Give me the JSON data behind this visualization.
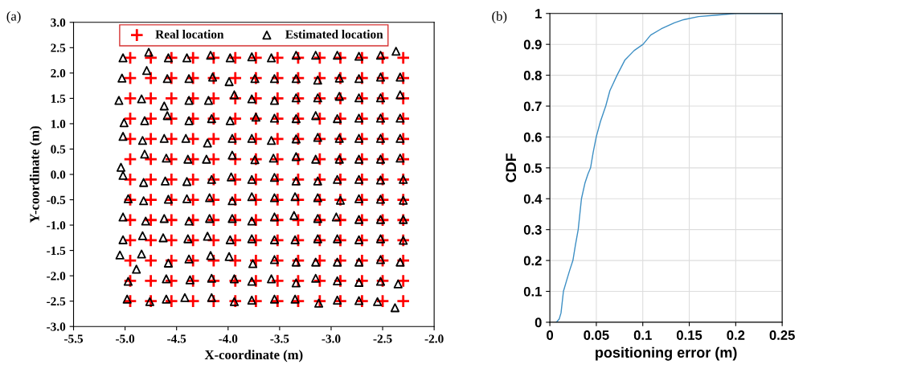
{
  "chart_data": [
    {
      "type": "scatter",
      "xlabel": "X-coordinate (m)",
      "ylabel": "Y-coordinate (m)",
      "annotations": [
        "(a)"
      ],
      "xlim": [
        -5.5,
        -2.0
      ],
      "ylim": [
        -3.0,
        3.0
      ],
      "xticks": [
        {
          "value": -5.5,
          "label": "-5.5"
        },
        {
          "value": -5.0,
          "label": "-5.0"
        },
        {
          "value": -4.5,
          "label": "-4.5"
        },
        {
          "value": -4.0,
          "label": "-4.0"
        },
        {
          "value": -3.5,
          "label": "-3.5"
        },
        {
          "value": -3.0,
          "label": "-3.0"
        },
        {
          "value": -2.5,
          "label": "-2.5"
        },
        {
          "value": -2.0,
          "label": "-2.0"
        }
      ],
      "yticks": [
        {
          "value": -3.0,
          "label": "-3.0"
        },
        {
          "value": -2.5,
          "label": "-2.5"
        },
        {
          "value": -2.0,
          "label": "-2.0"
        },
        {
          "value": -1.5,
          "label": "-1.5"
        },
        {
          "value": -1.0,
          "label": "-1.0"
        },
        {
          "value": -0.5,
          "label": "-0.5"
        },
        {
          "value": 0.0,
          "label": "0.0"
        },
        {
          "value": 0.5,
          "label": "0.5"
        },
        {
          "value": 1.0,
          "label": "1.0"
        },
        {
          "value": 1.5,
          "label": "1.5"
        },
        {
          "value": 2.0,
          "label": "2.0"
        },
        {
          "value": 2.5,
          "label": "2.5"
        },
        {
          "value": 3.0,
          "label": "3.0"
        }
      ],
      "grid": false,
      "legend": "top",
      "series": [
        {
          "name": "Real location",
          "color": "#ff0000",
          "marker": "cross",
          "x": [
            -4.95,
            -4.75,
            -4.55,
            -4.34,
            -4.14,
            -3.93,
            -3.73,
            -3.52,
            -3.32,
            -3.11,
            -2.91,
            -2.7,
            -2.5,
            -2.3,
            -4.95,
            -4.75,
            -4.55,
            -4.34,
            -4.14,
            -3.93,
            -3.73,
            -3.52,
            -3.32,
            -3.11,
            -2.91,
            -2.7,
            -2.5,
            -2.3,
            -4.95,
            -4.75,
            -4.55,
            -4.34,
            -4.14,
            -3.93,
            -3.73,
            -3.52,
            -3.32,
            -3.11,
            -2.91,
            -2.7,
            -2.5,
            -2.3,
            -4.95,
            -4.75,
            -4.55,
            -4.34,
            -4.14,
            -3.93,
            -3.73,
            -3.52,
            -3.32,
            -3.11,
            -2.91,
            -2.7,
            -2.5,
            -2.3,
            -4.95,
            -4.75,
            -4.55,
            -4.34,
            -4.14,
            -3.93,
            -3.73,
            -3.52,
            -3.32,
            -3.11,
            -2.91,
            -2.7,
            -2.5,
            -2.3,
            -4.95,
            -4.75,
            -4.55,
            -4.34,
            -4.14,
            -3.93,
            -3.73,
            -3.52,
            -3.32,
            -3.11,
            -2.91,
            -2.7,
            -2.5,
            -2.3,
            -4.95,
            -4.75,
            -4.55,
            -4.34,
            -4.14,
            -3.93,
            -3.73,
            -3.52,
            -3.32,
            -3.11,
            -2.91,
            -2.7,
            -2.5,
            -2.3,
            -4.95,
            -4.75,
            -4.55,
            -4.34,
            -4.14,
            -3.93,
            -3.73,
            -3.52,
            -3.32,
            -3.11,
            -2.91,
            -2.7,
            -2.5,
            -2.3,
            -4.95,
            -4.75,
            -4.55,
            -4.34,
            -4.14,
            -3.93,
            -3.73,
            -3.52,
            -3.32,
            -3.11,
            -2.91,
            -2.7,
            -2.5,
            -2.3,
            -4.95,
            -4.75,
            -4.55,
            -4.34,
            -4.14,
            -3.93,
            -3.73,
            -3.52,
            -3.32,
            -3.11,
            -2.91,
            -2.7,
            -2.5,
            -2.3,
            -4.95,
            -4.75,
            -4.55,
            -4.34,
            -4.14,
            -3.93,
            -3.73,
            -3.52,
            -3.32,
            -3.11,
            -2.91,
            -2.7,
            -2.5,
            -2.3,
            -4.95,
            -4.75,
            -4.55,
            -4.34,
            -4.14,
            -3.93,
            -3.73,
            -3.52,
            -3.32,
            -3.11,
            -2.91,
            -2.7,
            -2.5,
            -2.3,
            -4.95,
            -4.75,
            -4.55,
            -4.34,
            -4.14,
            -3.93,
            -3.73,
            -3.52,
            -3.32,
            -3.11,
            -2.91,
            -2.7,
            -2.5,
            -2.3
          ],
          "values": [
            2.3,
            2.3,
            2.3,
            2.3,
            2.3,
            2.3,
            2.3,
            2.3,
            2.3,
            2.3,
            2.3,
            2.3,
            2.3,
            2.3,
            1.9,
            1.9,
            1.9,
            1.9,
            1.9,
            1.9,
            1.9,
            1.9,
            1.9,
            1.9,
            1.9,
            1.9,
            1.9,
            1.9,
            1.5,
            1.5,
            1.5,
            1.5,
            1.5,
            1.5,
            1.5,
            1.5,
            1.5,
            1.5,
            1.5,
            1.5,
            1.5,
            1.5,
            1.1,
            1.1,
            1.1,
            1.1,
            1.1,
            1.1,
            1.1,
            1.1,
            1.1,
            1.1,
            1.1,
            1.1,
            1.1,
            1.1,
            0.7,
            0.7,
            0.7,
            0.7,
            0.7,
            0.7,
            0.7,
            0.7,
            0.7,
            0.7,
            0.7,
            0.7,
            0.7,
            0.7,
            0.3,
            0.3,
            0.3,
            0.3,
            0.3,
            0.3,
            0.3,
            0.3,
            0.3,
            0.3,
            0.3,
            0.3,
            0.3,
            0.3,
            -0.1,
            -0.1,
            -0.1,
            -0.1,
            -0.1,
            -0.1,
            -0.1,
            -0.1,
            -0.1,
            -0.1,
            -0.1,
            -0.1,
            -0.1,
            -0.1,
            -0.5,
            -0.5,
            -0.5,
            -0.5,
            -0.5,
            -0.5,
            -0.5,
            -0.5,
            -0.5,
            -0.5,
            -0.5,
            -0.5,
            -0.5,
            -0.5,
            -0.9,
            -0.9,
            -0.9,
            -0.9,
            -0.9,
            -0.9,
            -0.9,
            -0.9,
            -0.9,
            -0.9,
            -0.9,
            -0.9,
            -0.9,
            -0.9,
            -1.3,
            -1.3,
            -1.3,
            -1.3,
            -1.3,
            -1.3,
            -1.3,
            -1.3,
            -1.3,
            -1.3,
            -1.3,
            -1.3,
            -1.3,
            -1.3,
            -1.7,
            -1.7,
            -1.7,
            -1.7,
            -1.7,
            -1.7,
            -1.7,
            -1.7,
            -1.7,
            -1.7,
            -1.7,
            -1.7,
            -1.7,
            -1.7,
            -2.1,
            -2.1,
            -2.1,
            -2.1,
            -2.1,
            -2.1,
            -2.1,
            -2.1,
            -2.1,
            -2.1,
            -2.1,
            -2.1,
            -2.1,
            -2.1,
            -2.5,
            -2.5,
            -2.5,
            -2.5,
            -2.5,
            -2.5,
            -2.5,
            -2.5,
            -2.5,
            -2.5,
            -2.5,
            -2.5,
            -2.5,
            -2.5
          ]
        },
        {
          "name": "Estimated location",
          "color": "#000000",
          "marker": "triangle",
          "x": [
            -5.02,
            -4.77,
            -4.58,
            -4.4,
            -4.17,
            -3.98,
            -3.77,
            -3.58,
            -3.34,
            -3.15,
            -2.94,
            -2.73,
            -2.52,
            -2.37,
            -5.03,
            -4.79,
            -4.59,
            -4.38,
            -4.15,
            -3.99,
            -3.74,
            -3.55,
            -3.34,
            -3.13,
            -2.92,
            -2.73,
            -2.52,
            -2.33,
            -5.06,
            -4.84,
            -4.62,
            -4.38,
            -4.19,
            -3.94,
            -3.77,
            -3.55,
            -3.34,
            -3.13,
            -2.92,
            -2.73,
            -2.52,
            -2.33,
            -5.01,
            -4.81,
            -4.59,
            -4.38,
            -4.16,
            -3.98,
            -3.73,
            -3.55,
            -3.34,
            -3.15,
            -2.94,
            -2.73,
            -2.52,
            -2.33,
            -5.02,
            -4.83,
            -4.62,
            -4.41,
            -4.2,
            -3.96,
            -3.77,
            -3.58,
            -3.34,
            -3.13,
            -2.92,
            -2.73,
            -2.52,
            -2.33,
            -5.04,
            -4.81,
            -4.6,
            -4.39,
            -4.21,
            -3.96,
            -3.74,
            -3.56,
            -3.34,
            -3.15,
            -2.92,
            -2.73,
            -2.52,
            -2.33,
            -5.02,
            -4.82,
            -4.61,
            -4.4,
            -4.16,
            -3.97,
            -3.77,
            -3.55,
            -3.34,
            -3.13,
            -2.94,
            -2.73,
            -2.52,
            -2.3,
            -4.97,
            -4.82,
            -4.58,
            -4.4,
            -4.18,
            -3.96,
            -3.77,
            -3.55,
            -3.35,
            -3.13,
            -2.91,
            -2.73,
            -2.52,
            -2.3,
            -5.02,
            -4.8,
            -4.62,
            -4.38,
            -4.18,
            -3.96,
            -3.77,
            -3.55,
            -3.36,
            -3.13,
            -2.95,
            -2.73,
            -2.52,
            -2.3,
            -5.02,
            -4.83,
            -4.63,
            -4.39,
            -4.2,
            -3.98,
            -3.77,
            -3.55,
            -3.35,
            -3.13,
            -2.94,
            -2.73,
            -2.52,
            -2.3,
            -5.05,
            -4.84,
            -4.58,
            -4.38,
            -4.17,
            -3.99,
            -3.76,
            -3.55,
            -3.34,
            -3.15,
            -2.94,
            -2.73,
            -2.52,
            -2.33,
            -4.97,
            -4.89,
            -4.6,
            -4.37,
            -4.16,
            -3.94,
            -3.77,
            -3.58,
            -3.34,
            -3.15,
            -2.94,
            -2.73,
            -2.52,
            -2.35,
            -4.98,
            -4.76,
            -4.6,
            -4.42,
            -4.16,
            -3.94,
            -3.77,
            -3.55,
            -3.35,
            -3.12,
            -2.94,
            -2.73,
            -2.55,
            -2.38
          ],
          "values": [
            2.3,
            2.41,
            2.3,
            2.3,
            2.35,
            2.3,
            2.32,
            2.3,
            2.35,
            2.35,
            2.35,
            2.33,
            2.35,
            2.43,
            1.9,
            2.05,
            1.89,
            1.89,
            1.92,
            1.83,
            1.89,
            1.89,
            1.89,
            1.86,
            1.9,
            1.89,
            1.92,
            1.92,
            1.46,
            1.49,
            1.35,
            1.46,
            1.46,
            1.57,
            1.49,
            1.46,
            1.51,
            1.51,
            1.54,
            1.51,
            1.51,
            1.57,
            1.02,
            1.06,
            1.16,
            1.06,
            1.1,
            1.06,
            1.13,
            1.11,
            1.1,
            1.16,
            1.1,
            1.11,
            1.11,
            1.11,
            0.75,
            0.67,
            0.71,
            0.71,
            0.62,
            0.71,
            0.71,
            0.67,
            0.7,
            0.73,
            0.71,
            0.71,
            0.71,
            0.71,
            0.14,
            0.4,
            0.32,
            0.3,
            0.3,
            0.38,
            0.29,
            0.32,
            0.35,
            0.3,
            0.3,
            0.3,
            0.3,
            0.32,
            -0.02,
            -0.16,
            -0.13,
            -0.14,
            -0.1,
            -0.05,
            -0.1,
            -0.06,
            -0.13,
            -0.13,
            -0.1,
            -0.1,
            -0.11,
            -0.1,
            -0.48,
            -0.52,
            -0.49,
            -0.48,
            -0.46,
            -0.52,
            -0.44,
            -0.46,
            -0.44,
            -0.46,
            -0.51,
            -0.48,
            -0.49,
            -0.51,
            -0.84,
            -0.92,
            -0.87,
            -0.92,
            -0.87,
            -0.87,
            -0.92,
            -0.84,
            -0.81,
            -0.87,
            -0.84,
            -0.89,
            -0.89,
            -0.89,
            -1.29,
            -1.21,
            -1.25,
            -1.27,
            -1.22,
            -1.29,
            -1.27,
            -1.29,
            -1.29,
            -1.27,
            -1.27,
            -1.29,
            -1.27,
            -1.3,
            -1.59,
            -1.57,
            -1.75,
            -1.67,
            -1.6,
            -1.62,
            -1.76,
            -1.68,
            -1.73,
            -1.73,
            -1.73,
            -1.73,
            -1.68,
            -1.73,
            -2.11,
            -1.87,
            -2.06,
            -2.08,
            -2.05,
            -2.06,
            -2.11,
            -2.06,
            -2.14,
            -2.05,
            -2.1,
            -2.13,
            -2.11,
            -2.16,
            -2.46,
            -2.51,
            -2.46,
            -2.43,
            -2.43,
            -2.51,
            -2.48,
            -2.46,
            -2.46,
            -2.54,
            -2.48,
            -2.49,
            -2.51,
            -2.63
          ]
        }
      ]
    },
    {
      "type": "line",
      "xlabel": "positioning error (m)",
      "ylabel": "CDF",
      "annotations": [
        "(b)"
      ],
      "xlim": [
        0,
        0.25
      ],
      "ylim": [
        0,
        1
      ],
      "xticks": [
        0,
        0.05,
        0.1,
        0.15,
        0.2,
        0.25
      ],
      "yticks": [
        0,
        0.1,
        0.2,
        0.3,
        0.4,
        0.5,
        0.6,
        0.7,
        0.8,
        0.9,
        1
      ],
      "grid": true,
      "marker": "none",
      "line_style": "solid",
      "series": [
        {
          "color": "#3d8fc4",
          "x": [
            0.007,
            0.01,
            0.012,
            0.0146,
            0.0185,
            0.0215,
            0.0248,
            0.0275,
            0.0305,
            0.034,
            0.0377,
            0.041,
            0.0438,
            0.0466,
            0.0499,
            0.0544,
            0.0601,
            0.0646,
            0.0723,
            0.0809,
            0.0907,
            0.1003,
            0.1085,
            0.1197,
            0.134,
            0.144,
            0.16,
            0.18,
            0.2,
            0.25
          ],
          "values": [
            0,
            0.01,
            0.03,
            0.1,
            0.14,
            0.17,
            0.2,
            0.25,
            0.3,
            0.4,
            0.45,
            0.48,
            0.5,
            0.55,
            0.6,
            0.65,
            0.7,
            0.75,
            0.8,
            0.85,
            0.88,
            0.9,
            0.93,
            0.95,
            0.97,
            0.98,
            0.99,
            0.995,
            1.0,
            1.0
          ]
        }
      ]
    }
  ]
}
